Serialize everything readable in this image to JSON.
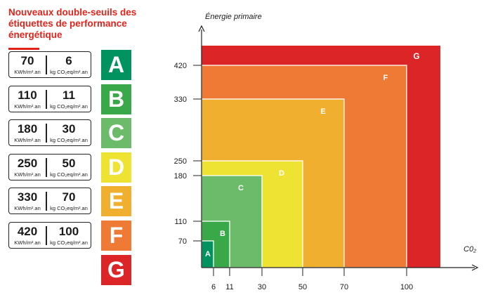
{
  "title": "Nouveaux double-seuils des\nétiquettes de performance\nénergétique",
  "labels": [
    {
      "letter": "A",
      "energy": "70",
      "co2": "6",
      "color": "#00935f"
    },
    {
      "letter": "B",
      "energy": "110",
      "co2": "11",
      "color": "#38a849"
    },
    {
      "letter": "C",
      "energy": "180",
      "co2": "30",
      "color": "#6bbb6b"
    },
    {
      "letter": "D",
      "energy": "250",
      "co2": "50",
      "color": "#eee233"
    },
    {
      "letter": "E",
      "energy": "330",
      "co2": "70",
      "color": "#f0af2e"
    },
    {
      "letter": "F",
      "energy": "420",
      "co2": "100",
      "color": "#ee7a36"
    },
    {
      "letter": "G",
      "energy": "",
      "co2": "",
      "color": "#dc2526"
    }
  ],
  "units": {
    "energy": "KWh/m².an",
    "co2": "kg CO₂eq/m².an"
  },
  "chart_data": {
    "type": "area",
    "ylabel": "Énergie primaire",
    "xlabel": "C0₂",
    "x_ticks": [
      6,
      11,
      30,
      50,
      70,
      100
    ],
    "y_ticks": [
      70,
      110,
      180,
      250,
      330,
      420
    ],
    "regions": [
      {
        "label": "G",
        "x_max": null,
        "y_max": null,
        "color": "#dc2526"
      },
      {
        "label": "F",
        "x_max": 100,
        "y_max": 420,
        "color": "#ee7a36"
      },
      {
        "label": "E",
        "x_max": 70,
        "y_max": 330,
        "color": "#f0af2e"
      },
      {
        "label": "D",
        "x_max": 50,
        "y_max": 250,
        "color": "#eee233"
      },
      {
        "label": "C",
        "x_max": 30,
        "y_max": 180,
        "color": "#6bbb6b"
      },
      {
        "label": "B",
        "x_max": 11,
        "y_max": 110,
        "color": "#38a849"
      },
      {
        "label": "A",
        "x_max": 6,
        "y_max": 70,
        "color": "#00935f"
      }
    ]
  }
}
